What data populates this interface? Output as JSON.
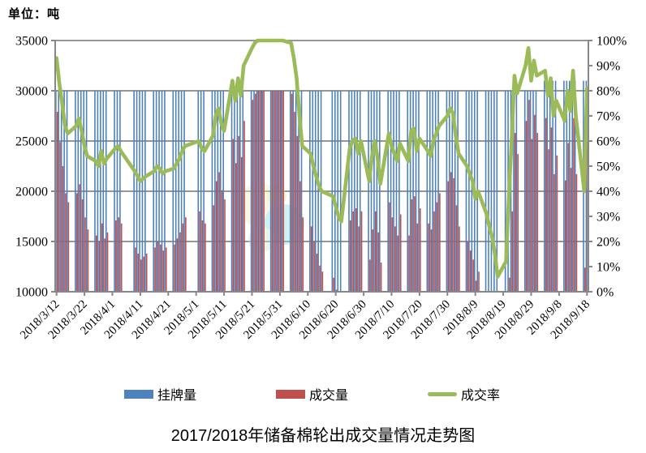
{
  "page": {
    "unit_label": "单位：吨",
    "bottom_title": "2017/2018年储备棉轮出成交量情况走势图"
  },
  "legend": [
    {
      "label": "挂牌量",
      "color": "#4F81BD",
      "type": "bar"
    },
    {
      "label": "成交量",
      "color": "#C0504D",
      "type": "bar"
    },
    {
      "label": "成交率",
      "color": "#9BBB59",
      "type": "line"
    }
  ],
  "watermark": {
    "desc": "faint circular swirl logo in plot center",
    "colors": [
      "#f3ecc0",
      "#8fdde8",
      "#cdeccb",
      "#f0e387"
    ]
  },
  "chart_data": {
    "type": "bar",
    "subtype": "combo-bar-line-daily",
    "title": "2017/2018年储备棉轮出成交量情况走势图",
    "unit": "单位：吨",
    "grid": true,
    "legend_position": "bottom",
    "left_axis": {
      "min": 10000,
      "max": 35000,
      "step": 5000,
      "ticks": [
        "35000",
        "30000",
        "25000",
        "20000",
        "15000",
        "10000"
      ]
    },
    "right_axis": {
      "min": 0,
      "max": 100,
      "step": 10,
      "format": "percent",
      "ticks": [
        "100%",
        "90%",
        "80%",
        "70%",
        "60%",
        "50%",
        "40%",
        "30%",
        "20%",
        "10%",
        "0%"
      ]
    },
    "x_tick_labels": [
      "2018/3/12",
      "2018/3/22",
      "2018/4/1",
      "2018/4/11",
      "2018/4/21",
      "2018/5/1",
      "2018/5/11",
      "2018/5/21",
      "2018/5/31",
      "2018/6/10",
      "2018/6/20",
      "2018/6/30",
      "2018/7/10",
      "2018/7/20",
      "2018/7/30",
      "2018/8/9",
      "2018/8/19",
      "2018/8/29",
      "2018/9/8",
      "2018/9/18"
    ],
    "categories": [
      "2018/3/12",
      "2018/3/13",
      "2018/3/14",
      "2018/3/15",
      "2018/3/16",
      "2018/3/19",
      "2018/3/20",
      "2018/3/21",
      "2018/3/22",
      "2018/3/23",
      "2018/3/26",
      "2018/3/27",
      "2018/3/28",
      "2018/3/29",
      "2018/3/30",
      "2018/4/2",
      "2018/4/3",
      "2018/4/4",
      "2018/4/9",
      "2018/4/10",
      "2018/4/11",
      "2018/4/12",
      "2018/4/13",
      "2018/4/16",
      "2018/4/17",
      "2018/4/18",
      "2018/4/19",
      "2018/4/20",
      "2018/4/23",
      "2018/4/24",
      "2018/4/25",
      "2018/4/26",
      "2018/4/27",
      "2018/5/2",
      "2018/5/3",
      "2018/5/4",
      "2018/5/7",
      "2018/5/8",
      "2018/5/9",
      "2018/5/10",
      "2018/5/11",
      "2018/5/14",
      "2018/5/15",
      "2018/5/16",
      "2018/5/17",
      "2018/5/18",
      "2018/5/21",
      "2018/5/22",
      "2018/5/23",
      "2018/5/24",
      "2018/5/25",
      "2018/5/28",
      "2018/5/29",
      "2018/5/30",
      "2018/5/31",
      "2018/6/1",
      "2018/6/4",
      "2018/6/5",
      "2018/6/6",
      "2018/6/7",
      "2018/6/8",
      "2018/6/11",
      "2018/6/12",
      "2018/6/13",
      "2018/6/14",
      "2018/6/15",
      "2018/6/19",
      "2018/6/20",
      "2018/6/21",
      "2018/6/22",
      "2018/6/25",
      "2018/6/26",
      "2018/6/27",
      "2018/6/28",
      "2018/6/29",
      "2018/7/2",
      "2018/7/3",
      "2018/7/4",
      "2018/7/5",
      "2018/7/6",
      "2018/7/9",
      "2018/7/10",
      "2018/7/11",
      "2018/7/12",
      "2018/7/13",
      "2018/7/16",
      "2018/7/17",
      "2018/7/18",
      "2018/7/19",
      "2018/7/20",
      "2018/7/23",
      "2018/7/24",
      "2018/7/25",
      "2018/7/26",
      "2018/7/27",
      "2018/7/30",
      "2018/7/31",
      "2018/8/1",
      "2018/8/2",
      "2018/8/3",
      "2018/8/6",
      "2018/8/7",
      "2018/8/8",
      "2018/8/9",
      "2018/8/10",
      "2018/8/13",
      "2018/8/14",
      "2018/8/15",
      "2018/8/16",
      "2018/8/17",
      "2018/8/20",
      "2018/8/21",
      "2018/8/22",
      "2018/8/23",
      "2018/8/24",
      "2018/8/27",
      "2018/8/28",
      "2018/8/29",
      "2018/8/30",
      "2018/8/31",
      "2018/9/3",
      "2018/9/4",
      "2018/9/5",
      "2018/9/6",
      "2018/9/7",
      "2018/9/10",
      "2018/9/11",
      "2018/9/12",
      "2018/9/13",
      "2018/9/14",
      "2018/9/17",
      "2018/9/18"
    ],
    "series": [
      {
        "name": "挂牌量",
        "type": "bar",
        "axis": "left",
        "color": "#4F81BD",
        "values": [
          30000,
          30000,
          30000,
          30000,
          30000,
          30000,
          30000,
          30000,
          30000,
          30000,
          30000,
          30000,
          30000,
          30000,
          30000,
          30000,
          30000,
          30000,
          30000,
          30000,
          30000,
          30000,
          30000,
          30000,
          30000,
          30000,
          30000,
          30000,
          30000,
          30000,
          30000,
          30000,
          30000,
          30000,
          30000,
          30000,
          30000,
          30000,
          30000,
          30000,
          30000,
          30000,
          30000,
          30000,
          30000,
          30000,
          30000,
          30000,
          30000,
          30000,
          30000,
          30000,
          30000,
          30000,
          30000,
          30000,
          30000,
          30000,
          30000,
          30000,
          30000,
          30000,
          30000,
          30000,
          30000,
          30000,
          30000,
          30000,
          30000,
          30000,
          30000,
          30000,
          30000,
          30000,
          30000,
          30000,
          30000,
          30000,
          30000,
          30000,
          30000,
          30000,
          30000,
          30000,
          30000,
          30000,
          30000,
          30000,
          30000,
          30000,
          30000,
          30000,
          30000,
          30000,
          30000,
          30000,
          30000,
          30000,
          30000,
          30000,
          30000,
          30000,
          30000,
          30000,
          30000,
          30000,
          30000,
          30000,
          30000,
          30000,
          30000,
          30000,
          30000,
          30000,
          30000,
          30000,
          30000,
          30000,
          30000,
          30000,
          31000,
          31000,
          31000,
          31000,
          31000,
          31000,
          31000,
          31000,
          31000,
          31000,
          31000,
          31000
        ]
      },
      {
        "name": "成交量",
        "type": "bar",
        "axis": "left",
        "color": "#C0504D",
        "values": [
          27900,
          24900,
          22500,
          19800,
          18900,
          19800,
          20700,
          19200,
          17400,
          16200,
          15600,
          15000,
          16800,
          15300,
          15900,
          17100,
          17400,
          16800,
          14400,
          13800,
          13200,
          13500,
          13800,
          14400,
          15000,
          14700,
          14100,
          14400,
          14700,
          15300,
          15900,
          16800,
          17400,
          18000,
          17100,
          16800,
          18600,
          21000,
          21900,
          20100,
          19200,
          25200,
          22800,
          25500,
          23400,
          27000,
          29100,
          29700,
          30000,
          30000,
          30000,
          30000,
          30000,
          30000,
          30000,
          30000,
          29700,
          27900,
          25500,
          21000,
          17400,
          16500,
          15000,
          13800,
          12600,
          12000,
          11400,
          10200,
          9000,
          8400,
          17100,
          18000,
          18300,
          16500,
          18000,
          13200,
          16200,
          18000,
          15900,
          12900,
          18900,
          17400,
          16500,
          15600,
          17700,
          15600,
          19200,
          19500,
          16800,
          18300,
          16800,
          16200,
          18000,
          18900,
          19800,
          21000,
          21900,
          21300,
          18600,
          16500,
          15000,
          14100,
          13200,
          11100,
          12000,
          9300,
          7800,
          6600,
          4500,
          1800,
          3600,
          11400,
          18000,
          25800,
          23700,
          27000,
          29100,
          25200,
          27600,
          25800,
          27280,
          24180,
          26350,
          21700,
          23560,
          21080,
          24800,
          22320,
          27280,
          21700,
          12400,
          25110
        ]
      },
      {
        "name": "成交率",
        "type": "line",
        "axis": "right",
        "color": "#9BBB59",
        "values": [
          93,
          83,
          75,
          66,
          63,
          66,
          69,
          64,
          58,
          54,
          52,
          50,
          56,
          51,
          53,
          57,
          58,
          56,
          48,
          46,
          44,
          45,
          46,
          48,
          50,
          49,
          47,
          48,
          49,
          51,
          53,
          56,
          58,
          60,
          57,
          56,
          62,
          70,
          73,
          67,
          64,
          84,
          76,
          85,
          78,
          90,
          97,
          99,
          100,
          100,
          100,
          100,
          100,
          100,
          100,
          100,
          99,
          93,
          85,
          70,
          58,
          55,
          50,
          46,
          42,
          40,
          38,
          34,
          30,
          28,
          57,
          60,
          61,
          55,
          60,
          44,
          54,
          60,
          53,
          43,
          63,
          58,
          55,
          52,
          59,
          52,
          64,
          65,
          56,
          61,
          56,
          54,
          60,
          63,
          66,
          70,
          73,
          71,
          62,
          55,
          50,
          47,
          44,
          37,
          40,
          31,
          26,
          22,
          15,
          6,
          12,
          38,
          60,
          86,
          79,
          90,
          97,
          84,
          92,
          86,
          88,
          78,
          85,
          70,
          76,
          68,
          80,
          72,
          88,
          70,
          40,
          81
        ]
      }
    ]
  }
}
